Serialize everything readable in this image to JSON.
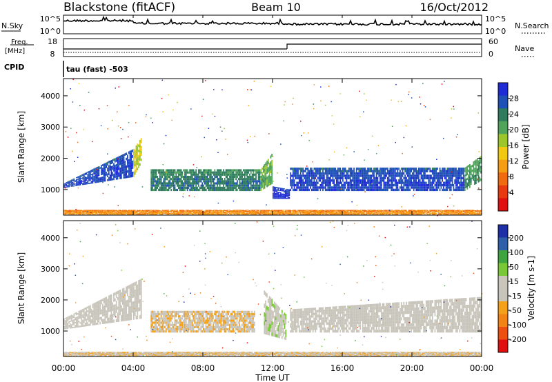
{
  "header": {
    "station": "Blackstone (fitACF)",
    "beam": "Beam 10",
    "date": "16/Oct/2012"
  },
  "sky_panel": {
    "left_label": "N.Sky",
    "left_ticks": [
      "10^5",
      "10^0"
    ],
    "right_ticks": [
      "10^5",
      "10^0"
    ],
    "right_label": "N.Search"
  },
  "freq_panel": {
    "left_label_1": "Freq.",
    "left_label_2": "[MHz]",
    "left_ticks": [
      "18",
      "8"
    ],
    "right_ticks": [
      "60",
      "0"
    ],
    "right_label": "Nave",
    "cpid_label": "CPID",
    "cpid_value": "tau (fast) -503"
  },
  "colors": {
    "power": [
      "#1e2bd6",
      "#1f50b5",
      "#2e7b5e",
      "#4fa35a",
      "#9dc62b",
      "#f2c911",
      "#f59d13",
      "#f06a12",
      "#e83a10",
      "#e01010"
    ],
    "velocity": [
      "#1f2fa8",
      "#2e5fa8",
      "#3fa43f",
      "#79c837",
      "#c9c5ba",
      "#c7c4bb",
      "#f4a018",
      "#f28314",
      "#ec4f10",
      "#e01010"
    ]
  },
  "chart_data": [
    {
      "type": "heatmap",
      "name": "Power",
      "ylabel": "Slant Range [km]",
      "yticks": [
        "4000",
        "3000",
        "2000",
        "1000"
      ],
      "ylim": [
        180,
        4550
      ],
      "colorbar_label": "Power [dB]",
      "colorbar_ticks": [
        "28",
        "24",
        "20",
        "16",
        "12",
        "8",
        "4"
      ],
      "colorbar_range": [
        0,
        32
      ],
      "bands": [
        {
          "x": [
            0.0,
            4.0
          ],
          "r0": [
            1050,
            1400
          ],
          "r1": [
            1200,
            2300
          ],
          "v": 26
        },
        {
          "x": [
            4.0,
            4.5
          ],
          "r0": [
            1400,
            1900
          ],
          "r1": [
            2300,
            2700
          ],
          "v": 14
        },
        {
          "x": [
            5.0,
            11.3
          ],
          "r0": [
            950,
            950
          ],
          "r1": [
            1650,
            1650
          ],
          "v": 22
        },
        {
          "x": [
            11.3,
            12.0
          ],
          "r0": [
            950,
            1200
          ],
          "r1": [
            1650,
            2200
          ],
          "v": 18
        },
        {
          "x": [
            12.0,
            13.0
          ],
          "r0": [
            700,
            700
          ],
          "r1": [
            1100,
            1000
          ],
          "v": 28
        },
        {
          "x": [
            13.0,
            23.0
          ],
          "r0": [
            950,
            950
          ],
          "r1": [
            1700,
            1700
          ],
          "v": 26
        },
        {
          "x": [
            23.0,
            24.0
          ],
          "r0": [
            950,
            1300
          ],
          "r1": [
            1700,
            2100
          ],
          "v": 20
        },
        {
          "x": [
            0.0,
            24.0
          ],
          "r0": [
            200,
            200
          ],
          "r1": [
            350,
            350
          ],
          "v": 8
        }
      ]
    },
    {
      "type": "heatmap",
      "name": "Velocity",
      "ylabel": "Slant Range [km]",
      "yticks": [
        "4000",
        "3000",
        "2000",
        "1000"
      ],
      "ylim": [
        180,
        4550
      ],
      "colorbar_label": "Velocity [m s-1]",
      "colorbar_ticks": [
        "200",
        "100",
        "50",
        "15",
        "-15",
        "-50",
        "-100",
        "-200"
      ],
      "colorbar_range": [
        -250,
        250
      ],
      "bands": [
        {
          "x": [
            0.0,
            4.5
          ],
          "r0": [
            1050,
            1400
          ],
          "r1": [
            1400,
            2700
          ],
          "v": 0
        },
        {
          "x": [
            5.0,
            11.0
          ],
          "r0": [
            950,
            950
          ],
          "r1": [
            1650,
            1650
          ],
          "v": -40
        },
        {
          "x": [
            11.5,
            12.8
          ],
          "r0": [
            900,
            700
          ],
          "r1": [
            2300,
            1500
          ],
          "v": 30
        },
        {
          "x": [
            13.0,
            24.0
          ],
          "r0": [
            950,
            950
          ],
          "r1": [
            1700,
            2100
          ],
          "v": 0
        },
        {
          "x": [
            0.0,
            24.0
          ],
          "r0": [
            200,
            200
          ],
          "r1": [
            330,
            330
          ],
          "v": -40
        }
      ]
    }
  ],
  "x_axis": {
    "ticks": [
      "00:00",
      "04:00",
      "08:00",
      "12:00",
      "16:00",
      "20:00",
      "00:00"
    ],
    "label": "Time UT",
    "range_hours": [
      0,
      24
    ]
  }
}
